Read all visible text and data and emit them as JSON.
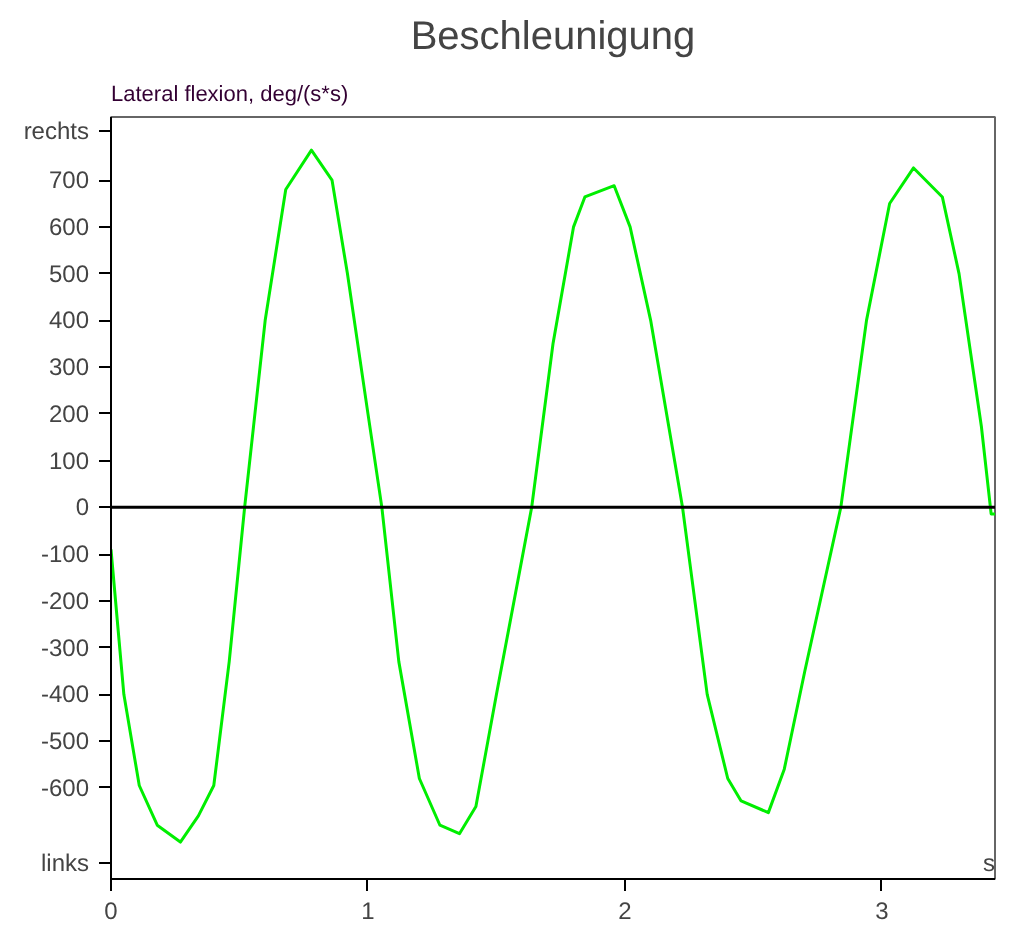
{
  "chart_data": {
    "type": "line",
    "title": "Beschleunigung",
    "ylabel": "Lateral flexion, deg/(s*s)",
    "xlabel": "s",
    "x": [
      0,
      0.05,
      0.11,
      0.18,
      0.27,
      0.34,
      0.4,
      0.46,
      0.52,
      0.6,
      0.68,
      0.78,
      0.86,
      0.92,
      1.0,
      1.054,
      1.12,
      1.2,
      1.28,
      1.356,
      1.42,
      1.5,
      1.637,
      1.72,
      1.8,
      1.844,
      1.958,
      2.02,
      2.1,
      2.224,
      2.32,
      2.4,
      2.452,
      2.558,
      2.62,
      2.7,
      2.84,
      2.94,
      3.03,
      3.123,
      3.235,
      3.3,
      3.387,
      3.425,
      3.44
    ],
    "series": [
      {
        "color": "#00ee00",
        "values": [
          -90,
          -400,
          -595,
          -680,
          -716,
          -660,
          -595,
          -330,
          0,
          400,
          680,
          764,
          700,
          500,
          200,
          0,
          -330,
          -580,
          -680,
          -698,
          -640,
          -400,
          0,
          350,
          600,
          664,
          688,
          600,
          400,
          0,
          -400,
          -580,
          -628,
          -653,
          -560,
          -350,
          0,
          400,
          650,
          726,
          664,
          500,
          173,
          -14,
          -14
        ]
      }
    ],
    "xlim": [
      0,
      3.44
    ],
    "xticks": [
      0,
      1,
      2,
      3
    ],
    "ylim": [
      -795,
      835
    ],
    "yticks": [
      {
        "value": -760,
        "label": "links"
      },
      -600,
      -500,
      -400,
      -300,
      -200,
      -100,
      0,
      100,
      200,
      300,
      400,
      500,
      600,
      700,
      {
        "value": 805,
        "label": "rechts"
      }
    ],
    "ref_lines": [
      {
        "axis": "y",
        "value": 0,
        "color": "#000000"
      }
    ],
    "grid": false,
    "marker": "none",
    "line_style": "solid"
  }
}
